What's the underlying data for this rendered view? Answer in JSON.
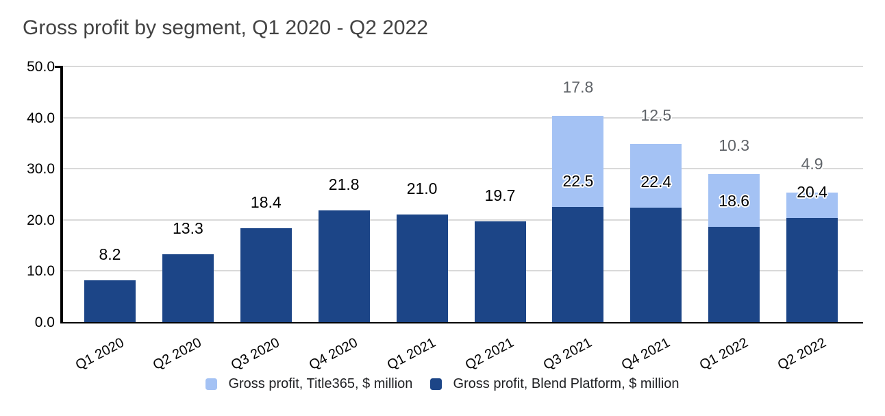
{
  "title": "Gross profit by segment, Q1 2020 - Q2 2022",
  "chart_data": {
    "type": "bar",
    "stacked": true,
    "title": "Gross profit by segment, Q1 2020 - Q2 2022",
    "categories": [
      "Q1 2020",
      "Q2 2020",
      "Q3 2020",
      "Q4 2020",
      "Q1 2021",
      "Q2 2021",
      "Q3 2021",
      "Q4 2021",
      "Q1 2022",
      "Q2 2022"
    ],
    "series": [
      {
        "name": "Gross profit, Title365, $ million",
        "color": "#a4c2f4",
        "label_color": "#5f6368",
        "stack_position": "top",
        "values": [
          null,
          null,
          null,
          null,
          null,
          null,
          17.8,
          12.5,
          10.3,
          4.9
        ]
      },
      {
        "name": "Gross profit, Blend Platform, $ million",
        "color": "#1c4587",
        "label_color": "#000000",
        "stack_position": "bottom",
        "values": [
          8.2,
          13.3,
          18.4,
          21.8,
          21.0,
          19.7,
          22.5,
          22.4,
          18.6,
          20.4
        ]
      }
    ],
    "ylim": [
      0,
      50
    ],
    "ytick_labels": [
      "0.0",
      "10.0",
      "20.0",
      "30.0",
      "40.0",
      "50.0"
    ],
    "grid": true,
    "data_labels": true,
    "legend_position": "bottom",
    "xlabel": "",
    "ylabel": ""
  },
  "colors": {
    "grid": "#d9d9d9",
    "axis": "#000000",
    "title_text": "#434343",
    "background": "#ffffff"
  }
}
